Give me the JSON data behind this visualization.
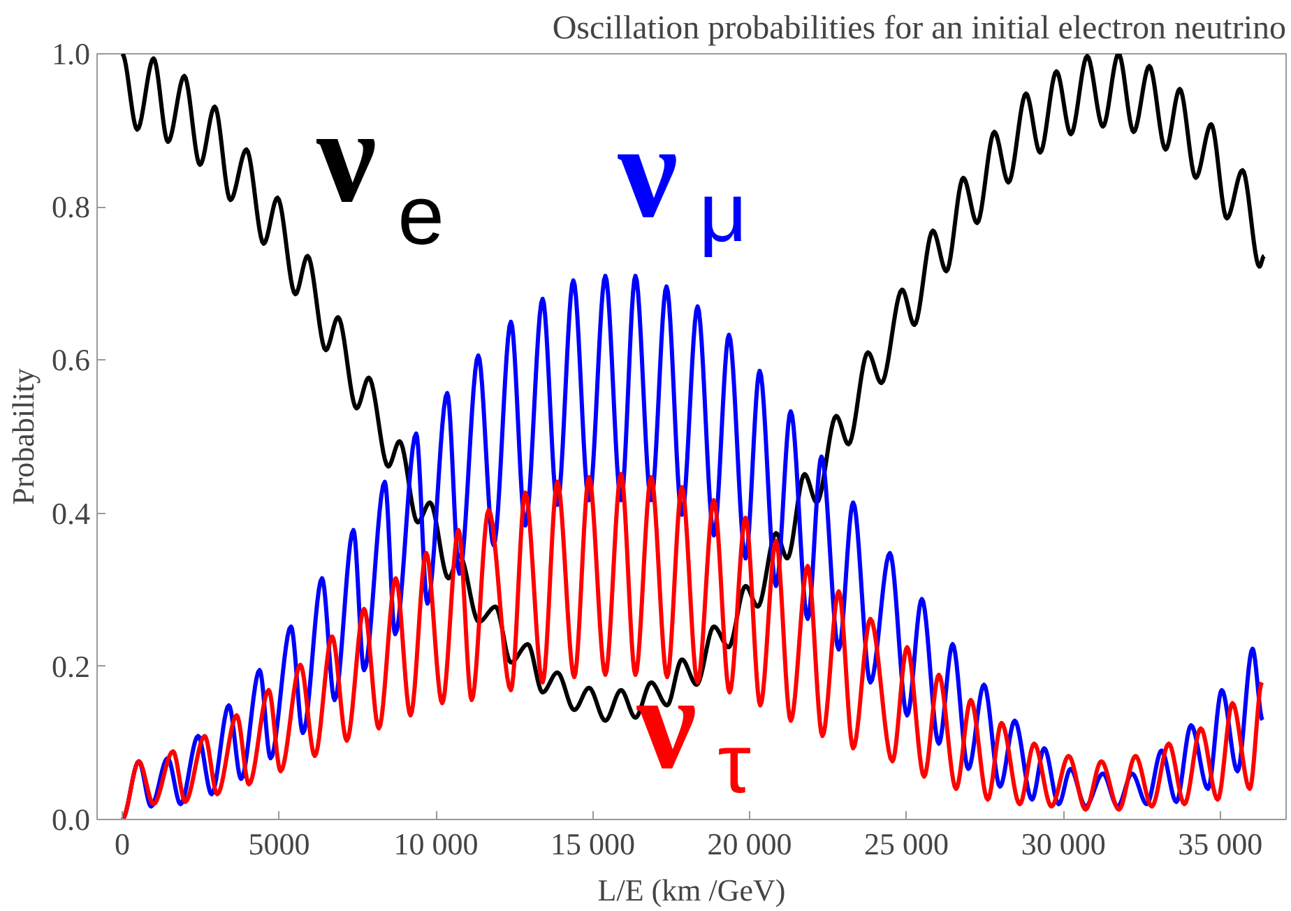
{
  "chart_data": {
    "type": "line",
    "title": "Oscillation probabilities for an initial electron neutrino",
    "xlabel": "L/E (km /GeV)",
    "ylabel": "Probability",
    "xlim": [
      -800,
      37100
    ],
    "ylim": [
      0,
      1.0
    ],
    "xticks": [
      0,
      5000,
      {
        "value": 10000,
        "label": "10 000"
      },
      {
        "value": 15000,
        "label": "15 000"
      },
      {
        "value": 20000,
        "label": "20 000"
      },
      {
        "value": 25000,
        "label": "25 000"
      },
      {
        "value": 30000,
        "label": "30 000"
      },
      {
        "value": 35000,
        "label": "35 000"
      }
    ],
    "yticks": [
      {
        "value": 0,
        "label": "0.0"
      },
      0.2,
      0.4,
      0.6,
      0.8,
      {
        "value": 1.0,
        "label": "1.0"
      }
    ],
    "grid": false,
    "legend": false,
    "marker": "none",
    "line_style": "solid",
    "series": [
      {
        "name": "ν$_{e}$",
        "color": "#000000",
        "x": [
          0,
          480,
          1000,
          1460,
          1980,
          2480,
          2950,
          3450,
          3960,
          4510,
          4950,
          5520,
          5910,
          6490,
          6880,
          7470,
          7860,
          8480,
          8840,
          9420,
          9810,
          10400,
          10750,
          11370,
          11900,
          12390,
          12930,
          13400,
          13870,
          14410,
          14880,
          15400,
          15900,
          16360,
          16860,
          17370,
          17840,
          18310,
          18860,
          19330,
          19870,
          20260,
          20840,
          21200,
          21750,
          22140,
          22760,
          23150,
          23770,
          24200,
          24860,
          25250,
          25840,
          26270,
          26810,
          27250,
          27800,
          28250,
          28810,
          29260,
          29780,
          30240,
          30760,
          31260,
          31760,
          32240,
          32740,
          33260,
          33710,
          34220,
          34710,
          35210,
          35710,
          36250,
          36400
        ],
        "values": [
          1.0,
          0.901,
          0.994,
          0.885,
          0.971,
          0.855,
          0.931,
          0.809,
          0.875,
          0.752,
          0.812,
          0.686,
          0.736,
          0.613,
          0.656,
          0.537,
          0.577,
          0.461,
          0.494,
          0.388,
          0.414,
          0.315,
          0.345,
          0.258,
          0.278,
          0.205,
          0.229,
          0.166,
          0.192,
          0.143,
          0.172,
          0.129,
          0.169,
          0.133,
          0.179,
          0.149,
          0.209,
          0.176,
          0.252,
          0.225,
          0.305,
          0.278,
          0.374,
          0.341,
          0.451,
          0.414,
          0.527,
          0.49,
          0.61,
          0.57,
          0.692,
          0.646,
          0.769,
          0.716,
          0.838,
          0.779,
          0.898,
          0.832,
          0.948,
          0.871,
          0.977,
          0.895,
          0.997,
          0.905,
          1.0,
          0.898,
          0.984,
          0.875,
          0.954,
          0.838,
          0.908,
          0.785,
          0.848,
          0.722,
          0.736
        ]
      },
      {
        "name": "ν$_{μ}$",
        "color": "#0000ff",
        "x": [
          0,
          530,
          920,
          1450,
          1860,
          2420,
          2850,
          3400,
          3790,
          4380,
          4730,
          5380,
          5760,
          6370,
          6770,
          7370,
          7710,
          8370,
          8700,
          9370,
          9730,
          10360,
          10750,
          11350,
          11840,
          12390,
          12850,
          13400,
          13870,
          14380,
          14880,
          15400,
          15900,
          16360,
          16860,
          17350,
          17840,
          18340,
          18860,
          19340,
          19870,
          20320,
          20840,
          21310,
          21850,
          22290,
          22840,
          23300,
          23850,
          24470,
          25020,
          25490,
          26030,
          26470,
          26970,
          27470,
          27980,
          28450,
          29000,
          29390,
          29850,
          30230,
          30710,
          31260,
          31730,
          32190,
          32660,
          33130,
          33600,
          34070,
          34610,
          35050,
          35550,
          36030,
          36350
        ],
        "values": [
          0,
          0.076,
          0.017,
          0.08,
          0.02,
          0.109,
          0.033,
          0.149,
          0.053,
          0.195,
          0.08,
          0.252,
          0.113,
          0.315,
          0.156,
          0.378,
          0.195,
          0.441,
          0.242,
          0.504,
          0.282,
          0.557,
          0.321,
          0.606,
          0.358,
          0.65,
          0.384,
          0.68,
          0.411,
          0.704,
          0.417,
          0.71,
          0.417,
          0.71,
          0.417,
          0.696,
          0.398,
          0.67,
          0.371,
          0.633,
          0.341,
          0.586,
          0.305,
          0.533,
          0.262,
          0.474,
          0.222,
          0.414,
          0.179,
          0.348,
          0.136,
          0.288,
          0.099,
          0.229,
          0.066,
          0.176,
          0.043,
          0.129,
          0.026,
          0.093,
          0.02,
          0.066,
          0.017,
          0.06,
          0.017,
          0.06,
          0.02,
          0.09,
          0.023,
          0.123,
          0.04,
          0.169,
          0.063,
          0.223,
          0.13
        ]
      },
      {
        "name": "ν$_{τ}$",
        "color": "#ff0000",
        "x": [
          0,
          530,
          1000,
          1620,
          2010,
          2630,
          3030,
          3650,
          4040,
          4670,
          5050,
          5680,
          6140,
          6690,
          7160,
          7710,
          8180,
          8720,
          9190,
          9690,
          10200,
          10720,
          11140,
          11680,
          12390,
          12850,
          13400,
          13870,
          14410,
          14880,
          15400,
          15900,
          16360,
          16860,
          17370,
          17840,
          18340,
          18860,
          19360,
          19870,
          20340,
          20840,
          21310,
          21850,
          22320,
          22840,
          23300,
          23850,
          24550,
          25020,
          25560,
          26030,
          26580,
          27050,
          27590,
          28030,
          28610,
          29070,
          29620,
          30170,
          30710,
          31210,
          31770,
          32300,
          32820,
          33360,
          33860,
          34380,
          34920,
          35390,
          35940,
          36330
        ],
        "values": [
          0,
          0.076,
          0.02,
          0.089,
          0.023,
          0.109,
          0.033,
          0.136,
          0.046,
          0.169,
          0.063,
          0.202,
          0.083,
          0.239,
          0.103,
          0.275,
          0.119,
          0.315,
          0.136,
          0.348,
          0.152,
          0.378,
          0.156,
          0.404,
          0.169,
          0.427,
          0.179,
          0.441,
          0.186,
          0.447,
          0.189,
          0.451,
          0.189,
          0.447,
          0.186,
          0.434,
          0.179,
          0.417,
          0.166,
          0.394,
          0.149,
          0.364,
          0.129,
          0.331,
          0.109,
          0.298,
          0.093,
          0.262,
          0.076,
          0.225,
          0.056,
          0.189,
          0.04,
          0.156,
          0.026,
          0.126,
          0.02,
          0.099,
          0.017,
          0.083,
          0.013,
          0.076,
          0.013,
          0.083,
          0.017,
          0.099,
          0.02,
          0.119,
          0.026,
          0.152,
          0.04,
          0.179
        ]
      }
    ]
  }
}
